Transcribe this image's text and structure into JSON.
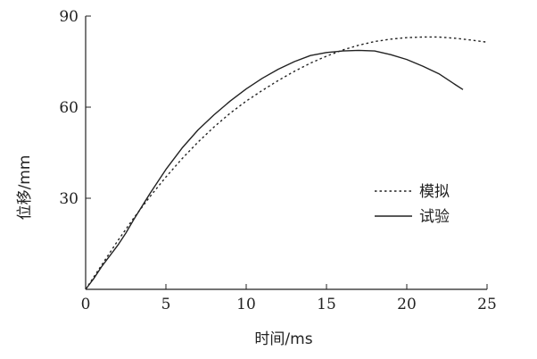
{
  "chart_data": {
    "type": "line",
    "title": "",
    "xlabel": "时间/ms",
    "ylabel": "位移/mm",
    "xlim": [
      0,
      25
    ],
    "ylim": [
      0,
      90
    ],
    "x_ticks": [
      0,
      5,
      10,
      15,
      20,
      25
    ],
    "y_ticks": [
      30,
      60,
      90
    ],
    "grid": false,
    "legend_position": "center-right",
    "series": [
      {
        "name": "模拟",
        "style": "dotted",
        "color": "#222222",
        "x": [
          0,
          1,
          2,
          3,
          4,
          5,
          6,
          7,
          8,
          9,
          10,
          11,
          12,
          13,
          14,
          15,
          16,
          17,
          18,
          19,
          20,
          21,
          22,
          23,
          24,
          25
        ],
        "y": [
          0,
          8,
          16,
          23.5,
          30.5,
          37,
          43,
          48.5,
          53.5,
          58,
          62,
          65.5,
          68.8,
          71.8,
          74.5,
          76.8,
          78.8,
          80.4,
          81.6,
          82.4,
          82.9,
          83.1,
          83.1,
          82.7,
          82.1,
          81.4
        ]
      },
      {
        "name": "试验",
        "style": "solid",
        "color": "#222222",
        "x": [
          0,
          0.5,
          1,
          1.5,
          2,
          2.5,
          3,
          4,
          5,
          6,
          7,
          8,
          9,
          10,
          11,
          12,
          13,
          14,
          15,
          16,
          17,
          18,
          19,
          20,
          21,
          22,
          23,
          23.5
        ],
        "y": [
          0,
          3.5,
          7.5,
          11,
          14.5,
          18.5,
          23,
          31.5,
          39.5,
          46.5,
          52.5,
          57.5,
          62,
          66,
          69.5,
          72.5,
          75,
          77,
          78,
          78.5,
          78.7,
          78.5,
          77.3,
          75.7,
          73.5,
          71,
          67.5,
          65.8
        ]
      }
    ]
  }
}
